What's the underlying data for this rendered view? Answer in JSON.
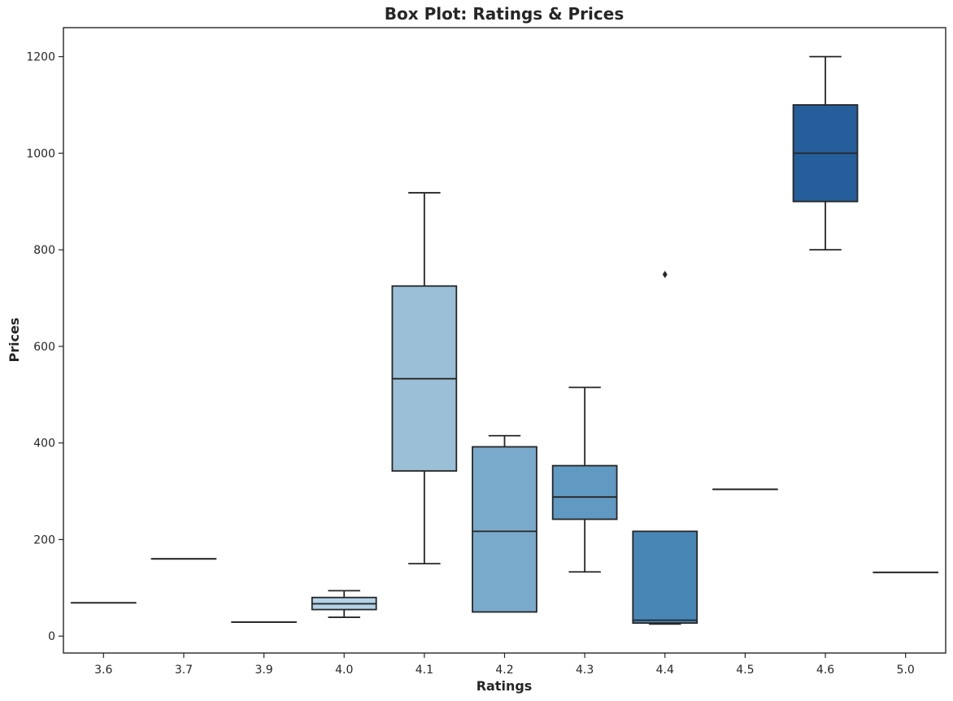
{
  "chart_data": {
    "type": "box",
    "title": "Box Plot: Ratings & Prices",
    "xlabel": "Ratings",
    "ylabel": "Prices",
    "ylim": [
      -35,
      1260
    ],
    "y_ticks": [
      0,
      200,
      400,
      600,
      800,
      1000,
      1200
    ],
    "grid": false,
    "categories": [
      "3.6",
      "3.7",
      "3.9",
      "4.0",
      "4.1",
      "4.2",
      "4.3",
      "4.4",
      "4.5",
      "4.6",
      "5.0"
    ],
    "boxes": [
      {
        "category": "3.6",
        "whisker_low": 69,
        "q1": 69,
        "median": 69,
        "q3": 69,
        "whisker_high": 69,
        "outliers": [],
        "color": "#d0e1f2"
      },
      {
        "category": "3.7",
        "whisker_low": 160,
        "q1": 160,
        "median": 160,
        "q3": 160,
        "whisker_high": 160,
        "outliers": [],
        "color": "#c4daee"
      },
      {
        "category": "3.9",
        "whisker_low": 29,
        "q1": 29,
        "median": 29,
        "q3": 29,
        "whisker_high": 29,
        "outliers": [],
        "color": "#b7d4ea"
      },
      {
        "category": "4.0",
        "whisker_low": 39,
        "q1": 55,
        "median": 67,
        "q3": 80,
        "whisker_high": 94,
        "outliers": [],
        "color": "#b4d3e8"
      },
      {
        "category": "4.1",
        "whisker_low": 150,
        "q1": 342,
        "median": 533,
        "q3": 725,
        "whisker_high": 918,
        "outliers": [],
        "color": "#9abfd6"
      },
      {
        "category": "4.2",
        "whisker_low": 50,
        "q1": 50,
        "median": 217,
        "q3": 392,
        "whisker_high": 415,
        "outliers": [],
        "color": "#7aaacb"
      },
      {
        "category": "4.3",
        "whisker_low": 133,
        "q1": 242,
        "median": 288,
        "q3": 353,
        "whisker_high": 515,
        "outliers": [],
        "color": "#6099c1"
      },
      {
        "category": "4.4",
        "whisker_low": 25,
        "q1": 27,
        "median": 33,
        "q3": 217,
        "whisker_high": 217,
        "outliers": [
          749
        ],
        "color": "#4886b6"
      },
      {
        "category": "4.5",
        "whisker_low": 304,
        "q1": 304,
        "median": 304,
        "q3": 304,
        "whisker_high": 304,
        "outliers": [],
        "color": "#3a78ad"
      },
      {
        "category": "4.6",
        "whisker_low": 800,
        "q1": 900,
        "median": 1000,
        "q3": 1100,
        "whisker_high": 1200,
        "outliers": [],
        "color": "#255e9a"
      },
      {
        "category": "5.0",
        "whisker_low": 132,
        "q1": 132,
        "median": 132,
        "q3": 132,
        "whisker_high": 132,
        "outliers": [],
        "color": "#1c5290"
      }
    ]
  }
}
